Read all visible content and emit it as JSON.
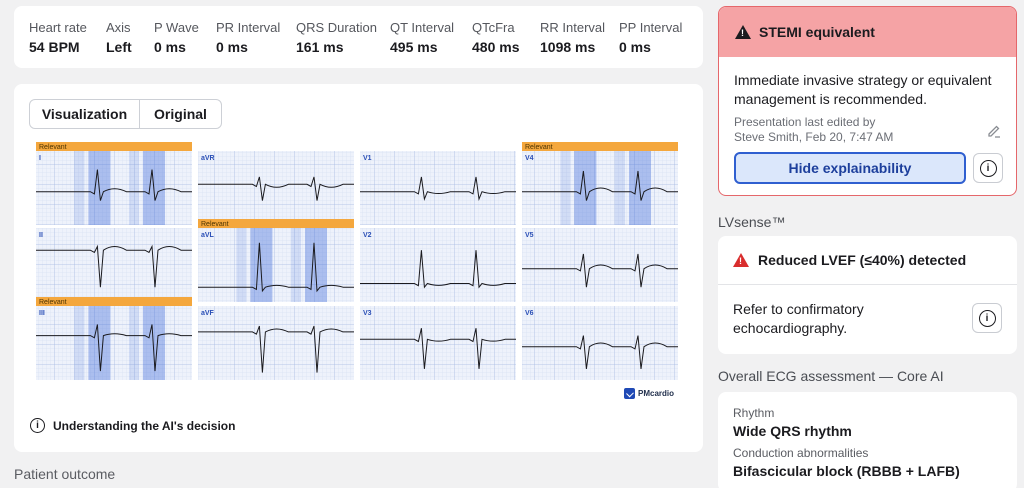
{
  "metrics": [
    {
      "label": "Heart rate",
      "value": "54 BPM"
    },
    {
      "label": "Axis",
      "value": "Left"
    },
    {
      "label": "P Wave",
      "value": "0 ms"
    },
    {
      "label": "PR Interval",
      "value": "0 ms"
    },
    {
      "label": "QRS Duration",
      "value": "161 ms"
    },
    {
      "label": "QT Interval",
      "value": "495 ms"
    },
    {
      "label": "QTcFra",
      "value": "480 ms"
    },
    {
      "label": "RR Interval",
      "value": "1098 ms"
    },
    {
      "label": "PP Interval",
      "value": "0 ms"
    }
  ],
  "ecg_panel": {
    "tabs": [
      {
        "label": "Visualization"
      },
      {
        "label": "Original"
      }
    ],
    "relevant_label": "Relevant",
    "leads": [
      "I",
      "aVR",
      "V1",
      "V4",
      "II",
      "aVL",
      "V2",
      "V5",
      "III",
      "aVF",
      "V3",
      "V6"
    ],
    "relevant_leads": [
      "I",
      "V4",
      "aVL",
      "III"
    ],
    "brand": "PMcardio",
    "understand_label": "Understanding the AI's decision",
    "grid_color": "#b7c6e8",
    "highlight_color": "#2d5fd6",
    "relevant_color": "#f4a73d"
  },
  "patient_outcome": "Patient outcome",
  "stemi": {
    "title": "STEMI equivalent",
    "body": "Immediate invasive strategy or equivalent management is recommended.",
    "edited_line1": "Presentation last edited by",
    "edited_line2": "Steve Smith, Feb 20, 7:47 AM",
    "hide_button": "Hide explainability",
    "info_glyph": "i"
  },
  "lvsense": {
    "title": "LVsense™",
    "alert": "Reduced LVEF (≤40%) detected",
    "body": "Refer to confirmatory echocardiography.",
    "info_glyph": "i"
  },
  "overall": {
    "title": "Overall ECG assessment — Core AI",
    "rhythm_label": "Rhythm",
    "rhythm_value": "Wide QRS rhythm",
    "conduction_label": "Conduction abnormalities",
    "conduction_value": "Bifascicular block (RBBB + LAFB)"
  }
}
